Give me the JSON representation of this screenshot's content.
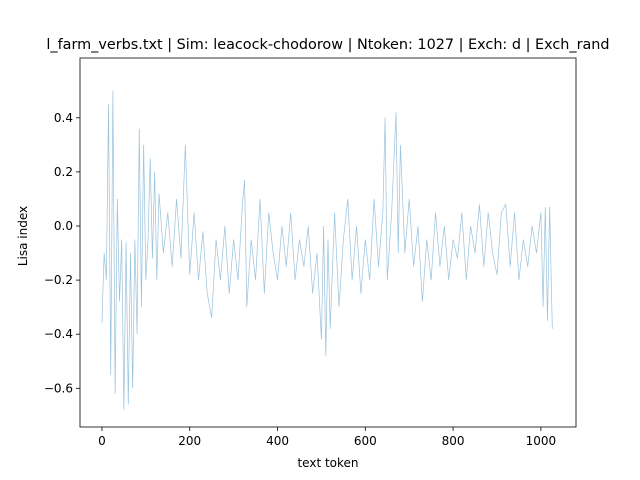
{
  "chart_data": {
    "type": "line",
    "title": "l_farm_verbs.txt | Sim: leacock-chodorow | Ntoken: 1027 | Exch: d | Exch_rand",
    "x_label": "text token",
    "y_label": "Lisa index",
    "x": [
      0,
      5,
      10,
      15,
      20,
      25,
      30,
      35,
      40,
      45,
      50,
      55,
      60,
      65,
      70,
      75,
      80,
      85,
      90,
      95,
      100,
      105,
      110,
      115,
      120,
      125,
      130,
      140,
      150,
      160,
      170,
      180,
      190,
      200,
      210,
      220,
      230,
      240,
      250,
      260,
      270,
      280,
      290,
      300,
      310,
      320,
      325,
      330,
      340,
      350,
      360,
      370,
      380,
      390,
      400,
      410,
      420,
      430,
      440,
      450,
      460,
      470,
      480,
      490,
      500,
      505,
      510,
      515,
      520,
      530,
      540,
      550,
      560,
      570,
      580,
      590,
      600,
      610,
      620,
      630,
      640,
      645,
      650,
      660,
      670,
      675,
      680,
      690,
      700,
      710,
      720,
      730,
      740,
      750,
      760,
      770,
      780,
      790,
      800,
      810,
      820,
      830,
      840,
      850,
      860,
      870,
      880,
      890,
      900,
      910,
      920,
      930,
      940,
      950,
      960,
      970,
      980,
      990,
      1000,
      1005,
      1010,
      1015,
      1020,
      1026
    ],
    "series": [
      {
        "color": "#1f77b4",
        "values": [
          -0.36,
          -0.1,
          -0.2,
          0.45,
          -0.55,
          0.5,
          -0.62,
          0.1,
          -0.28,
          -0.05,
          -0.68,
          -0.06,
          -0.66,
          -0.1,
          -0.6,
          -0.05,
          -0.4,
          0.36,
          -0.3,
          0.3,
          -0.2,
          -0.05,
          0.25,
          -0.12,
          0.2,
          -0.2,
          0.12,
          -0.1,
          0.05,
          -0.15,
          0.1,
          -0.12,
          0.3,
          -0.18,
          0.05,
          -0.2,
          -0.02,
          -0.25,
          -0.34,
          -0.05,
          -0.2,
          0.0,
          -0.25,
          -0.05,
          -0.2,
          0.08,
          0.17,
          -0.3,
          -0.05,
          -0.2,
          0.1,
          -0.25,
          0.05,
          -0.1,
          -0.2,
          0.0,
          -0.15,
          0.05,
          -0.2,
          -0.05,
          -0.15,
          0.0,
          -0.25,
          -0.1,
          -0.42,
          0.0,
          -0.48,
          -0.05,
          -0.38,
          0.05,
          -0.3,
          -0.05,
          0.1,
          -0.2,
          0.0,
          -0.25,
          -0.05,
          -0.2,
          0.1,
          -0.15,
          0.05,
          0.4,
          -0.2,
          0.05,
          0.42,
          -0.1,
          0.3,
          -0.1,
          0.1,
          -0.15,
          0.0,
          -0.28,
          -0.05,
          -0.2,
          0.05,
          -0.15,
          0.0,
          -0.2,
          -0.05,
          -0.12,
          0.05,
          -0.2,
          0.0,
          -0.1,
          0.08,
          -0.15,
          0.05,
          -0.1,
          -0.18,
          0.05,
          0.08,
          -0.15,
          0.05,
          -0.2,
          -0.05,
          -0.15,
          0.0,
          -0.1,
          0.05,
          -0.3,
          0.07,
          -0.35,
          0.07,
          -0.38
        ]
      }
    ],
    "xlim": [
      -50,
      1080
    ],
    "ylim": [
      -0.743,
      0.621
    ],
    "xticks": [
      0,
      200,
      400,
      600,
      800,
      1000
    ],
    "yticks": [
      {
        "value": -0.6,
        "label": "−0.6"
      },
      {
        "value": -0.4,
        "label": "−0.4"
      },
      {
        "value": -0.2,
        "label": "−0.2"
      },
      {
        "value": 0.0,
        "label": "0.0"
      },
      0.2,
      0.4
    ],
    "grid": false
  }
}
